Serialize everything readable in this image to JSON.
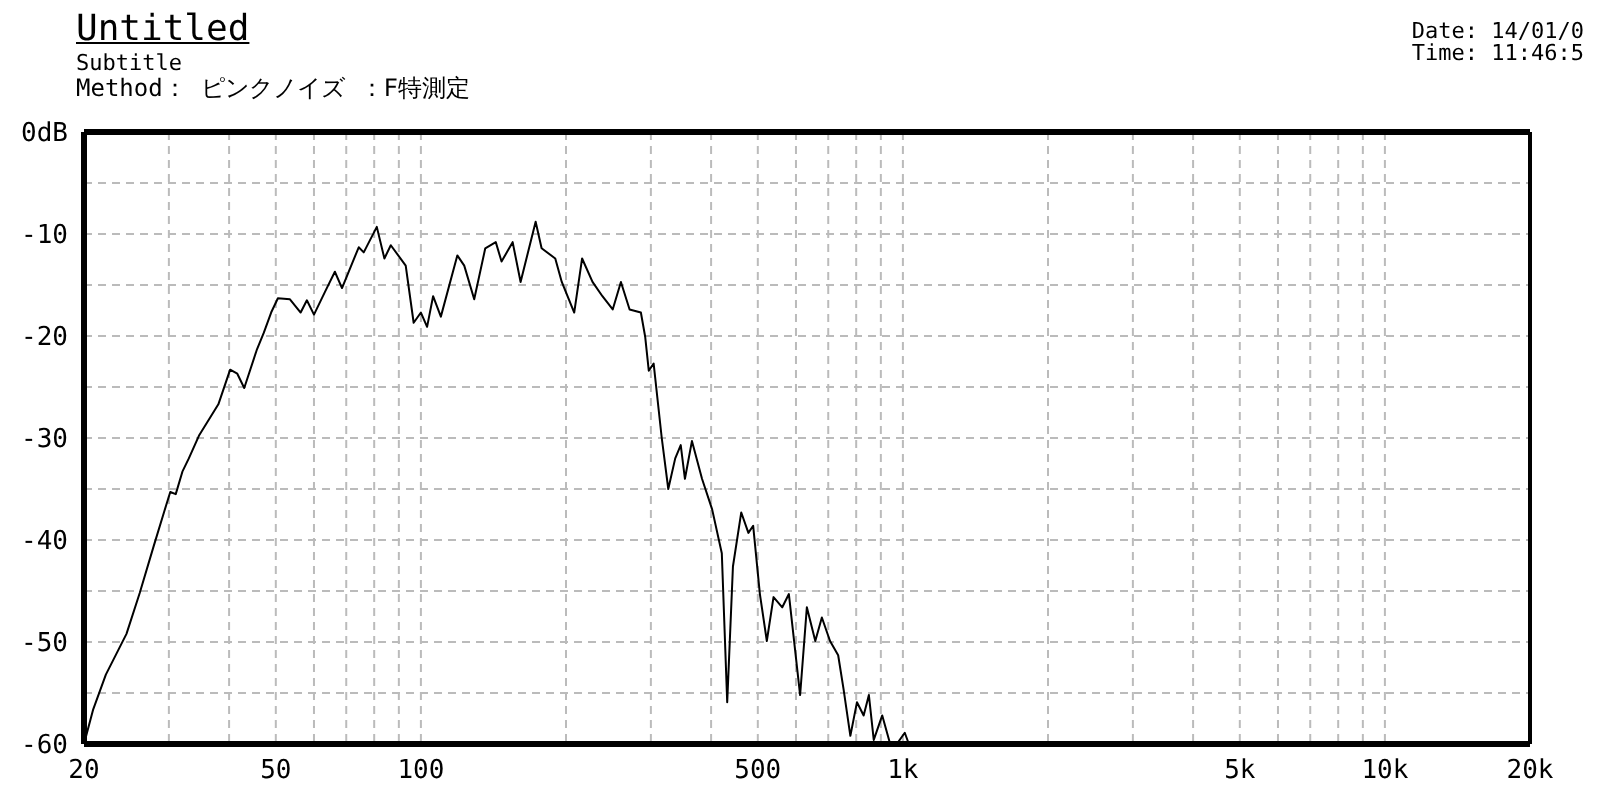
{
  "chart_data": {
    "type": "line",
    "title": "Untitled",
    "subtitle": "Subtitle",
    "annotations": [
      "Method： ピンクノイズ ：F特測定",
      "Date: 14/01/0",
      "Time: 11:46:5"
    ],
    "log": "x",
    "grid": true,
    "color": "#000000",
    "xlim": [
      20,
      20000
    ],
    "xticks": [
      20,
      {
        "value": 30,
        "label": null
      },
      {
        "value": 40,
        "label": null
      },
      50,
      {
        "value": 60,
        "label": null
      },
      {
        "value": 70,
        "label": null
      },
      {
        "value": 80,
        "label": null
      },
      {
        "value": 90,
        "label": null
      },
      100,
      {
        "value": 200,
        "label": null
      },
      {
        "value": 300,
        "label": null
      },
      {
        "value": 400,
        "label": null
      },
      500,
      {
        "value": 600,
        "label": null
      },
      {
        "value": 700,
        "label": null
      },
      {
        "value": 800,
        "label": null
      },
      {
        "value": 900,
        "label": null
      },
      {
        "value": 1000,
        "label": "1k"
      },
      {
        "value": 2000,
        "label": null
      },
      {
        "value": 3000,
        "label": null
      },
      {
        "value": 4000,
        "label": null
      },
      {
        "value": 5000,
        "label": "5k"
      },
      {
        "value": 6000,
        "label": null
      },
      {
        "value": 7000,
        "label": null
      },
      {
        "value": 8000,
        "label": null
      },
      {
        "value": 9000,
        "label": null
      },
      {
        "value": 10000,
        "label": "10k"
      },
      {
        "value": 20000,
        "label": "20k"
      }
    ],
    "ylim": [
      -60,
      0
    ],
    "yticks": [
      -60,
      {
        "value": -55,
        "label": null
      },
      -50,
      {
        "value": -45,
        "label": null
      },
      -40,
      {
        "value": -35,
        "label": null
      },
      -30,
      {
        "value": -25,
        "label": null
      },
      -20,
      {
        "value": -15,
        "label": null
      },
      -10,
      {
        "value": -5,
        "label": null
      },
      {
        "value": 0,
        "label": "0dB"
      }
    ],
    "x": [
      20,
      20.9,
      22.2,
      24.5,
      26.1,
      27.9,
      29.3,
      30.2,
      31,
      32,
      33,
      34.7,
      38,
      40.2,
      41.6,
      43,
      45.7,
      47.2,
      48.9,
      50.5,
      53.5,
      56.3,
      58,
      60,
      63.2,
      66.3,
      68.6,
      74.3,
      76.1,
      81,
      84,
      86.6,
      93,
      96.6,
      100,
      103,
      106,
      110,
      119,
      123,
      129,
      136,
      143,
      147,
      155,
      161,
      173,
      178,
      190,
      196,
      208,
      216,
      227,
      238,
      250,
      260,
      271,
      286,
      292,
      297,
      304,
      316,
      326,
      337,
      346,
      353,
      365,
      383,
      402,
      421,
      432,
      444,
      462,
      478,
      489,
      505,
      522,
      539,
      562,
      580,
      612,
      632,
      658,
      679,
      706,
      734,
      753,
      778,
      803,
      829,
      850,
      870,
      906,
      941,
      971,
      1009,
      1029
    ],
    "values": [
      -60,
      -56.6,
      -53.2,
      -49.2,
      -45.2,
      -40.6,
      -37.3,
      -35.3,
      -35.5,
      -33.3,
      -32,
      -29.7,
      -26.7,
      -23.3,
      -23.7,
      -25.1,
      -21.3,
      -19.7,
      -17.7,
      -16.3,
      -16.4,
      -17.7,
      -16.5,
      -17.9,
      -15.7,
      -13.7,
      -15.3,
      -11.3,
      -11.8,
      -9.3,
      -12.4,
      -11.1,
      -13.1,
      -18.7,
      -17.7,
      -19.1,
      -16.1,
      -18.1,
      -12.1,
      -13.1,
      -16.4,
      -11.4,
      -10.8,
      -12.7,
      -10.8,
      -14.7,
      -8.8,
      -11.4,
      -12.4,
      -14.7,
      -17.7,
      -12.4,
      -14.7,
      -16.1,
      -17.4,
      -14.7,
      -17.4,
      -17.7,
      -20.1,
      -23.4,
      -22.7,
      -30,
      -35,
      -32,
      -30.7,
      -34,
      -30.3,
      -34,
      -37,
      -41.3,
      -55.9,
      -42.6,
      -37.3,
      -39.3,
      -38.6,
      -45.3,
      -49.9,
      -45.6,
      -46.6,
      -45.3,
      -55.2,
      -46.6,
      -49.9,
      -47.6,
      -49.9,
      -51.3,
      -54.6,
      -59.2,
      -55.9,
      -57.2,
      -55.2,
      -59.6,
      -57.2,
      -60,
      -60,
      -58.9,
      -60
    ]
  }
}
